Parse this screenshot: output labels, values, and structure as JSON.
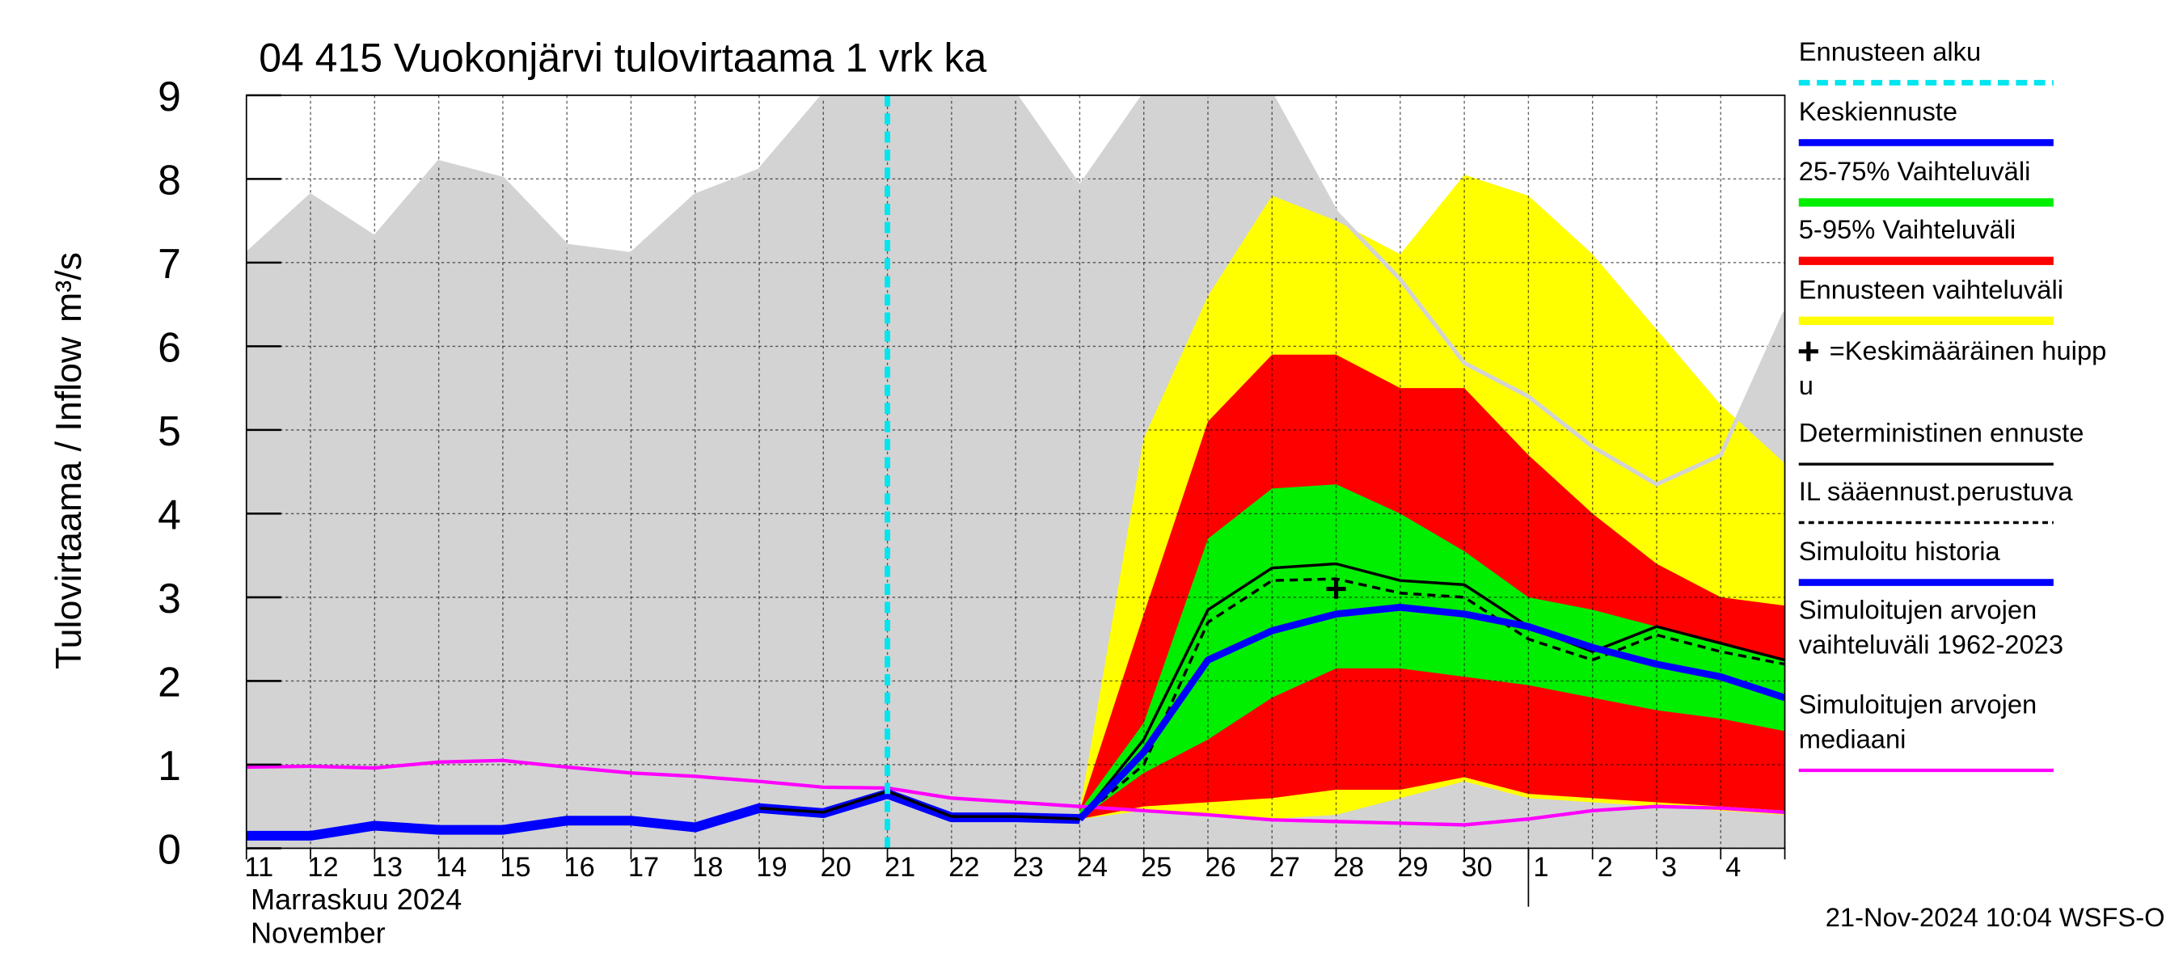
{
  "chart_data": {
    "type": "line",
    "title": "04 415 Vuokonjärvi tulovirtaama 1 vrk ka",
    "y_label": "Tulovirtaama / Inflow",
    "y_unit": "m³/s",
    "x_label_lines": [
      "Marraskuu 2024",
      "November"
    ],
    "footer": "21-Nov-2024 10:04 WSFS-O",
    "categories": [
      "11",
      "12",
      "13",
      "14",
      "15",
      "16",
      "17",
      "18",
      "19",
      "20",
      "21",
      "22",
      "23",
      "24",
      "25",
      "26",
      "27",
      "28",
      "29",
      "30",
      "1",
      "2",
      "3",
      "4",
      null
    ],
    "month_start": "1",
    "ylim": [
      0,
      9
    ],
    "yticks": [
      0,
      1,
      2,
      3,
      4,
      5,
      6,
      7,
      8,
      9
    ],
    "grid": true,
    "forecast_start": "21",
    "peak": {
      "x": "28",
      "y": 3.1
    },
    "series": [
      {
        "name": [
          "Ennusteen alku"
        ],
        "kind": "vline",
        "color": "#00e5ee"
      },
      {
        "name": [
          "Keskiennuste"
        ],
        "kind": "line",
        "color": "#0000ff",
        "width": 5,
        "values": [
          null,
          null,
          null,
          null,
          null,
          null,
          null,
          null,
          null,
          null,
          null,
          null,
          null,
          0.35,
          1.15,
          2.25,
          2.6,
          2.8,
          2.88,
          2.8,
          2.65,
          2.4,
          2.2,
          2.05,
          1.8
        ]
      },
      {
        "name": [
          "25-75% Vaihteluväli"
        ],
        "kind": "band",
        "color": "#00ee00",
        "upper": [
          null,
          null,
          null,
          null,
          null,
          null,
          null,
          null,
          null,
          null,
          null,
          null,
          null,
          0.45,
          1.5,
          3.7,
          4.3,
          4.35,
          4.0,
          3.55,
          3.0,
          2.85,
          2.65,
          2.45,
          2.25
        ],
        "lower": [
          null,
          null,
          null,
          null,
          null,
          null,
          null,
          null,
          null,
          null,
          null,
          null,
          null,
          0.35,
          0.9,
          1.3,
          1.8,
          2.15,
          2.15,
          2.05,
          1.95,
          1.8,
          1.65,
          1.55,
          1.4
        ]
      },
      {
        "name": [
          "5-95% Vaihteluväli"
        ],
        "kind": "band",
        "color": "#ff0000",
        "upper": [
          null,
          null,
          null,
          null,
          null,
          null,
          null,
          null,
          null,
          null,
          null,
          null,
          null,
          0.45,
          2.8,
          5.1,
          5.9,
          5.9,
          5.5,
          5.5,
          4.7,
          4.0,
          3.4,
          3.0,
          2.9
        ],
        "lower": [
          null,
          null,
          null,
          null,
          null,
          null,
          null,
          null,
          null,
          null,
          null,
          null,
          null,
          0.35,
          0.5,
          0.55,
          0.6,
          0.7,
          0.7,
          0.85,
          0.65,
          0.6,
          0.55,
          0.5,
          0.45
        ]
      },
      {
        "name": [
          "Ennusteen vaihteluväli"
        ],
        "kind": "band",
        "color": "#ffff00",
        "upper": [
          null,
          null,
          null,
          null,
          null,
          null,
          null,
          null,
          null,
          null,
          null,
          null,
          null,
          0.45,
          4.9,
          6.6,
          7.8,
          7.5,
          7.1,
          8.05,
          7.8,
          7.1,
          6.2,
          5.3,
          4.6
        ],
        "lower": [
          null,
          null,
          null,
          null,
          null,
          null,
          null,
          null,
          null,
          null,
          null,
          null,
          null,
          0.35,
          0.45,
          0.4,
          0.35,
          0.4,
          0.6,
          0.8,
          0.6,
          0.55,
          0.5,
          0.45,
          0.4
        ]
      },
      {
        "name": [
          "=Keskimääräinen huipp",
          "u"
        ],
        "kind": "peak",
        "color": "#000000"
      },
      {
        "name": [
          "Deterministinen ennuste"
        ],
        "kind": "line",
        "color": "#000000",
        "width": 2,
        "values": [
          null,
          null,
          null,
          null,
          null,
          null,
          null,
          null,
          0.48,
          0.43,
          0.68,
          0.38,
          0.38,
          0.35,
          1.3,
          2.85,
          3.35,
          3.4,
          3.2,
          3.15,
          2.65,
          2.35,
          2.65,
          2.45,
          2.25
        ]
      },
      {
        "name": [
          "IL sääennust.perustuva"
        ],
        "kind": "line",
        "color": "#000000",
        "width": 2,
        "dash": true,
        "values": [
          null,
          null,
          null,
          null,
          null,
          null,
          null,
          null,
          null,
          null,
          null,
          null,
          null,
          0.35,
          1.0,
          2.7,
          3.2,
          3.22,
          3.05,
          3.0,
          2.5,
          2.25,
          2.55,
          2.35,
          2.2
        ]
      },
      {
        "name": [
          "Simuloitu historia"
        ],
        "kind": "line",
        "color": "#0000ff",
        "width": 7,
        "values": [
          0.15,
          0.15,
          0.27,
          0.22,
          0.22,
          0.33,
          0.33,
          0.25,
          0.48,
          0.42,
          0.65,
          0.37,
          0.37,
          0.35,
          null,
          null,
          null,
          null,
          null,
          null,
          null,
          null,
          null,
          null,
          null
        ]
      },
      {
        "name": [
          "Simuloitujen arvojen",
          "vaihteluväli 1962-2023"
        ],
        "kind": "band",
        "color": "#d3d3d3",
        "upper": [
          7.1,
          7.8,
          7.3,
          8.2,
          8.0,
          7.2,
          7.1,
          7.8,
          8.1,
          9,
          9,
          9,
          9,
          7.9,
          9,
          9,
          9,
          7.6,
          6.8,
          5.8,
          5.4,
          4.8,
          4.35,
          4.7,
          6.4
        ],
        "lower": [
          0,
          0,
          0,
          0,
          0,
          0,
          0,
          0,
          0,
          0,
          0,
          0,
          0,
          0,
          0,
          0,
          0,
          0,
          0,
          0,
          0,
          0,
          0,
          0,
          0
        ]
      },
      {
        "name": [
          "Simuloitujen arvojen",
          "mediaani"
        ],
        "kind": "line",
        "color": "#ff00ff",
        "width": 2.5,
        "values": [
          0.97,
          0.98,
          0.96,
          1.03,
          1.05,
          0.97,
          0.9,
          0.86,
          0.8,
          0.73,
          0.72,
          0.6,
          0.55,
          0.5,
          0.45,
          0.4,
          0.34,
          0.32,
          0.3,
          0.28,
          0.35,
          0.45,
          0.5,
          0.48,
          0.43
        ]
      }
    ]
  }
}
